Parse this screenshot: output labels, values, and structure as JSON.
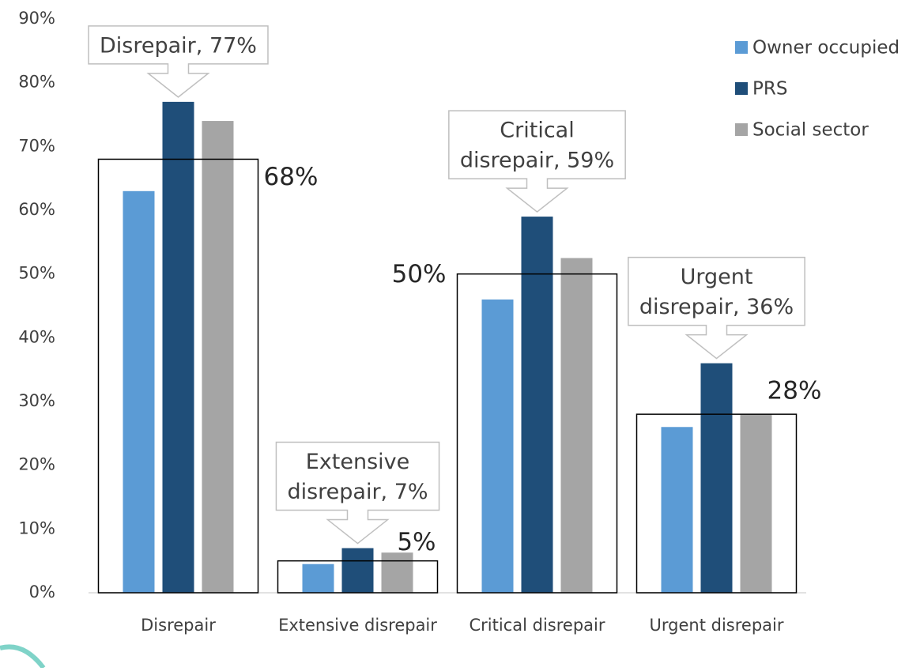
{
  "chart_data": {
    "type": "bar",
    "categories": [
      "Disrepair",
      "Extensive disrepair",
      "Critical disrepair",
      "Urgent disrepair"
    ],
    "series": [
      {
        "name": "Owner occupied",
        "color": "#5b9bd5",
        "values": [
          63,
          4.5,
          46,
          26
        ]
      },
      {
        "name": "PRS",
        "color": "#1f4e79",
        "values": [
          77,
          7,
          59,
          36
        ]
      },
      {
        "name": "Social sector",
        "color": "#a5a5a5",
        "values": [
          74,
          6.3,
          52.5,
          28
        ]
      }
    ],
    "totals": {
      "values": [
        68,
        5,
        50,
        28
      ],
      "value_labels": [
        "68%",
        "5%",
        "50%",
        "28%"
      ]
    },
    "annotations": [
      {
        "lines": [
          "Disrepair, 77%"
        ]
      },
      {
        "lines": [
          "Extensive",
          "disrepair, 7%"
        ]
      },
      {
        "lines": [
          "Critical",
          "disrepair, 59%"
        ]
      },
      {
        "lines": [
          "Urgent",
          "disrepair, 36%"
        ]
      }
    ],
    "ylim": [
      0,
      90
    ],
    "yticks": [
      {
        "value": 0,
        "label": "0%"
      },
      {
        "value": 10,
        "label": "10%"
      },
      {
        "value": 20,
        "label": "20%"
      },
      {
        "value": 30,
        "label": "30%"
      },
      {
        "value": 40,
        "label": "40%"
      },
      {
        "value": 50,
        "label": "50%"
      },
      {
        "value": 60,
        "label": "60%"
      },
      {
        "value": 70,
        "label": "70%"
      },
      {
        "value": 80,
        "label": "80%"
      },
      {
        "value": 90,
        "label": "90%"
      }
    ],
    "legend": "top-right"
  }
}
